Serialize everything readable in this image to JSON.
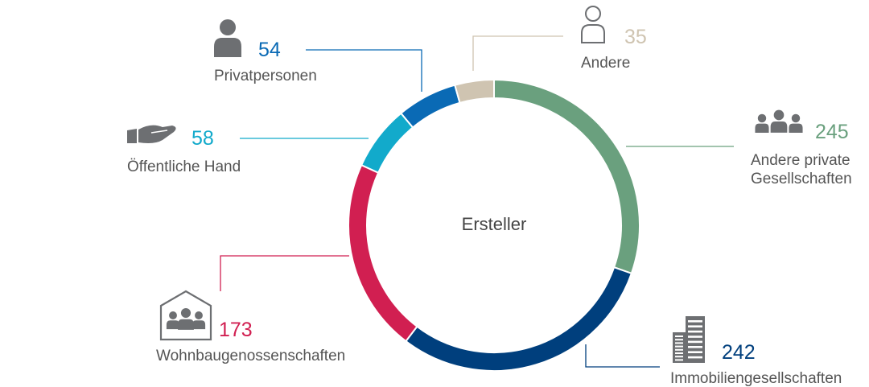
{
  "chart_data": {
    "type": "pie",
    "center_label": "Ersteller",
    "categories": [
      "Andere private Gesellschaften",
      "Immobiliengesellschaften",
      "Wohnbaugenossenschaften",
      "Öffentliche Hand",
      "Privatpersonen",
      "Andere"
    ],
    "values": [
      245,
      242,
      173,
      58,
      54,
      35
    ],
    "colors": [
      "#6aa07e",
      "#003f7d",
      "#d11f51",
      "#12aacb",
      "#0a6ab5",
      "#cfc4b1"
    ],
    "icons": [
      "group-icon",
      "office-building-icon",
      "cooperative-house-icon",
      "open-hand-icon",
      "person-icon",
      "person-outline-icon"
    ],
    "label_lines": [
      [
        "Andere private",
        "Gesellschaften"
      ],
      [
        "Immobiliengesellschaften"
      ],
      [
        "Wohnbaugenossenschaften"
      ],
      [
        "Öffentliche Hand"
      ],
      [
        "Privatpersonen"
      ],
      [
        "Andere"
      ]
    ]
  }
}
